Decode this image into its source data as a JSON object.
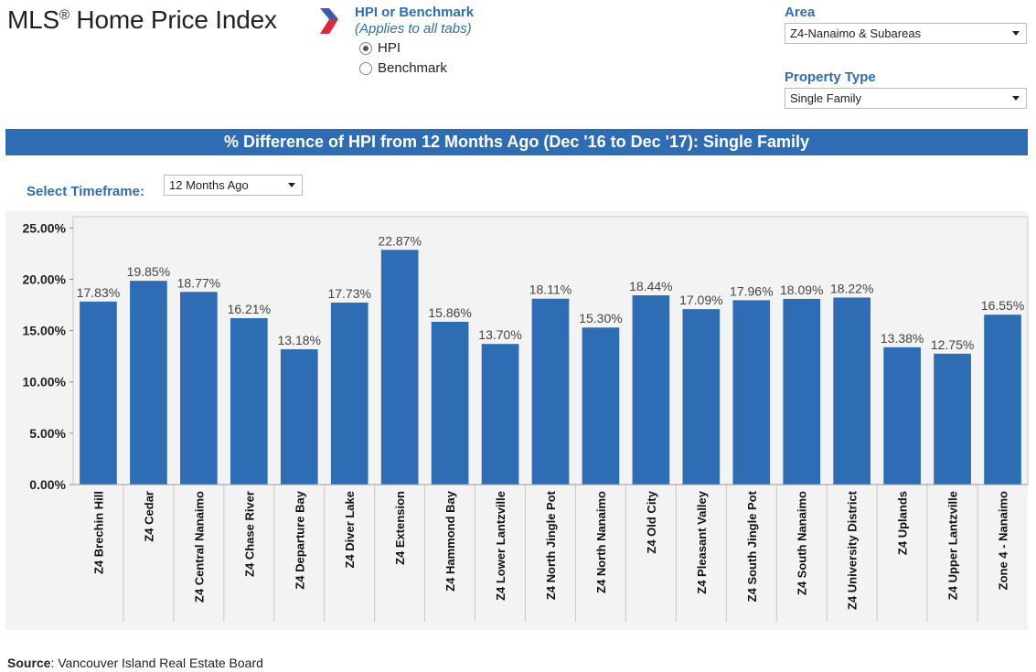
{
  "header": {
    "logo_text": "MLS",
    "logo_mark": "®",
    "logo_rest": " Home Price Index",
    "hpi_title": "HPI or Benchmark",
    "hpi_subtitle": "(Applies to all tabs)",
    "options": [
      {
        "label": "HPI",
        "selected": true
      },
      {
        "label": "Benchmark",
        "selected": false
      }
    ],
    "area_label": "Area",
    "area_value": "Z4-Nanaimo & Subareas",
    "property_label": "Property Type",
    "property_value": "Single Family"
  },
  "banner": {
    "title": "% Difference of HPI from 12 Months Ago (Dec '16 to Dec '17): Single Family"
  },
  "timeframe": {
    "label": "Select Timeframe:",
    "value": "12 Months Ago"
  },
  "source": {
    "label": "Source",
    "text": ": Vancouver Island Real Estate Board"
  },
  "colors": {
    "accent": "#2e6db4",
    "bar": "#2e6db4",
    "logo_red": "#e0283a",
    "logo_blue": "#3b5ba8"
  },
  "chart_data": {
    "type": "bar",
    "categories": [
      "Z4 Brechin Hill",
      "Z4 Cedar",
      "Z4 Central Nanaimo",
      "Z4 Chase River",
      "Z4 Departure Bay",
      "Z4 Diver Lake",
      "Z4 Extension",
      "Z4 Hammond Bay",
      "Z4 Lower Lantzville",
      "Z4 North Jingle Pot",
      "Z4 North Nanaimo",
      "Z4 Old City",
      "Z4 Pleasant Valley",
      "Z4 South Jingle Pot",
      "Z4 South Nanaimo",
      "Z4 University District",
      "Z4 Uplands",
      "Z4 Upper Lantzville",
      "Zone 4 - Nanaimo"
    ],
    "values": [
      17.83,
      19.85,
      18.77,
      16.21,
      13.18,
      17.73,
      22.87,
      15.86,
      13.7,
      18.11,
      15.3,
      18.44,
      17.09,
      17.96,
      18.09,
      18.22,
      13.38,
      12.75,
      16.55
    ],
    "value_labels": [
      "17.83%",
      "19.85%",
      "18.77%",
      "16.21%",
      "13.18%",
      "17.73%",
      "22.87%",
      "15.86%",
      "13.70%",
      "18.11%",
      "15.30%",
      "18.44%",
      "17.09%",
      "17.96%",
      "18.09%",
      "18.22%",
      "13.38%",
      "12.75%",
      "16.55%"
    ],
    "y_ticks": [
      "0.00%",
      "5.00%",
      "10.00%",
      "15.00%",
      "20.00%",
      "25.00%"
    ],
    "ylim": [
      0,
      26.1
    ],
    "grid": false
  }
}
